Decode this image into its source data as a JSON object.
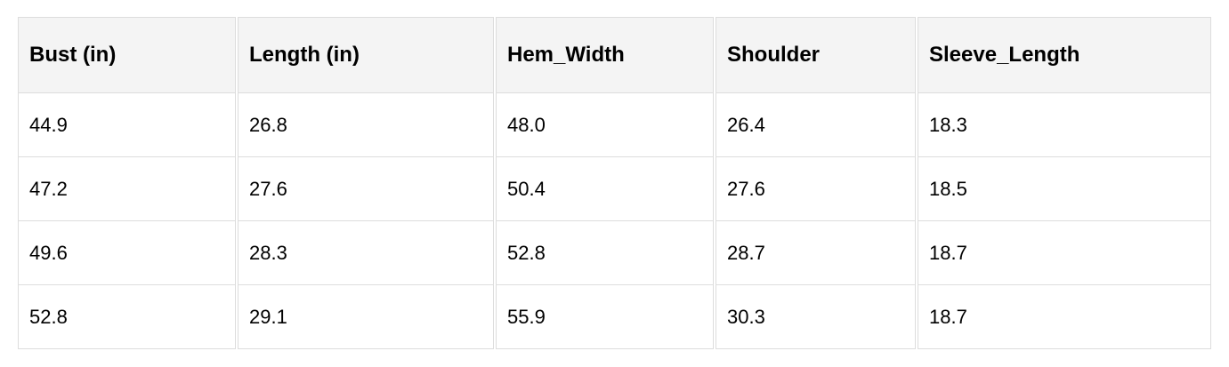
{
  "table": {
    "headers": [
      "Bust (in)",
      "Length (in)",
      "Hem_Width",
      "Shoulder",
      "Sleeve_Length"
    ],
    "rows": [
      [
        "44.9",
        "26.8",
        "48.0",
        "26.4",
        "18.3"
      ],
      [
        "47.2",
        "27.6",
        "50.4",
        "27.6",
        "18.5"
      ],
      [
        "49.6",
        "28.3",
        "52.8",
        "28.7",
        "18.7"
      ],
      [
        "52.8",
        "29.1",
        "55.9",
        "30.3",
        "18.7"
      ]
    ]
  }
}
